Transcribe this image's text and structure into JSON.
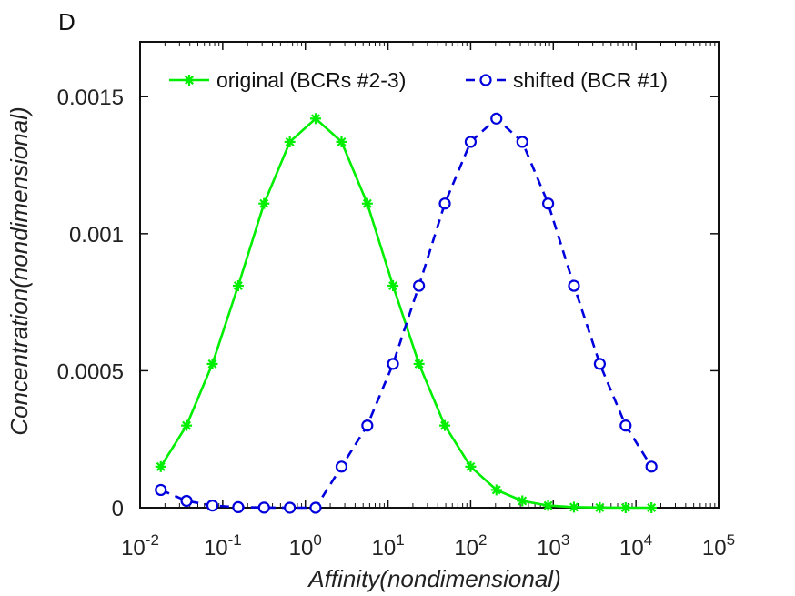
{
  "panel_label": "D",
  "chart_data": {
    "type": "line",
    "xlabel": "Affinity(nondimensional)",
    "ylabel": "Concentration(nondimensional)",
    "xscale": "log",
    "xlim": [
      0.01,
      100000
    ],
    "ylim": [
      0,
      0.0017
    ],
    "x_ticks": [
      {
        "base": "10",
        "exp": "-2"
      },
      {
        "base": "10",
        "exp": "-1"
      },
      {
        "base": "10",
        "exp": "0"
      },
      {
        "base": "10",
        "exp": "1"
      },
      {
        "base": "10",
        "exp": "2"
      },
      {
        "base": "10",
        "exp": "3"
      },
      {
        "base": "10",
        "exp": "4"
      },
      {
        "base": "10",
        "exp": "5"
      }
    ],
    "y_ticks": [
      {
        "value": 0,
        "label": "0"
      },
      {
        "value": 0.0005,
        "label": "0.0005"
      },
      {
        "value": 0.001,
        "label": "0.001"
      },
      {
        "value": 0.0015,
        "label": "0.0015"
      }
    ],
    "grid": false,
    "legend_position": "top",
    "series": [
      {
        "name": "original (BCRs #2-3)",
        "color": "#00ee00",
        "line": "solid",
        "marker": "asterisk",
        "x": [
          0.0178,
          0.0365,
          0.075,
          0.154,
          0.316,
          0.649,
          1.33,
          2.74,
          5.62,
          11.5,
          23.7,
          48.7,
          100,
          205,
          422,
          866,
          1778,
          3652,
          7499,
          15400
        ],
        "y": [
          0.00015,
          0.0003,
          0.000525,
          0.00081,
          0.00111,
          0.001335,
          0.00142,
          0.001335,
          0.00111,
          0.00081,
          0.000525,
          0.0003,
          0.00015,
          6.5e-05,
          2.5e-05,
          8e-06,
          2e-06,
          5e-07,
          1e-07,
          0.0
        ]
      },
      {
        "name": "shifted (BCR #1)",
        "color": "#0000dd",
        "line": "dashed",
        "marker": "circle",
        "x": [
          0.0178,
          0.0365,
          0.075,
          0.154,
          0.316,
          0.649,
          1.33,
          2.74,
          5.62,
          11.5,
          23.7,
          48.7,
          100,
          205,
          422,
          866,
          1778,
          3652,
          7499,
          15400
        ],
        "y": [
          6.5e-05,
          2.5e-05,
          8e-06,
          2e-06,
          5e-07,
          1e-07,
          0.0,
          0.00015,
          0.0003,
          0.000525,
          0.00081,
          0.00111,
          0.001335,
          0.00142,
          0.001335,
          0.00111,
          0.00081,
          0.000525,
          0.0003,
          0.00015
        ]
      }
    ]
  }
}
